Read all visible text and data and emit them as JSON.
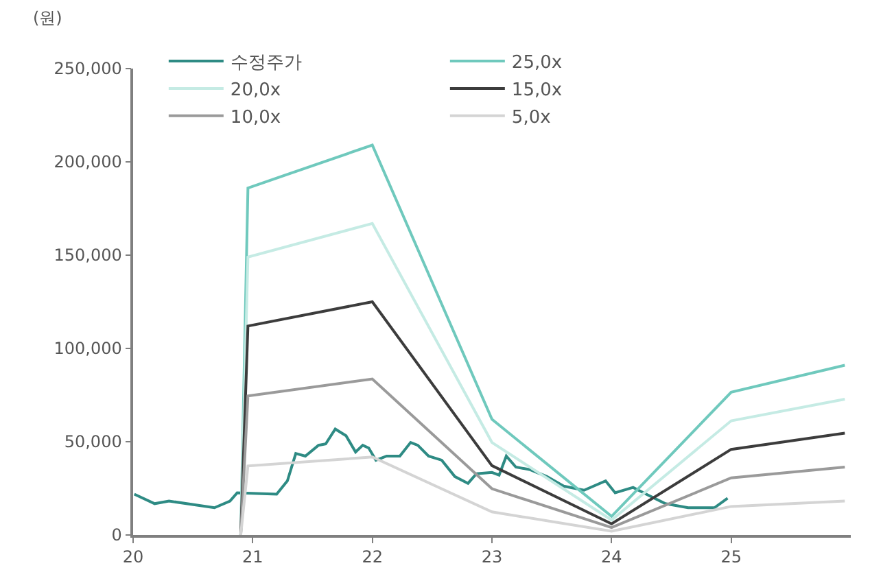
{
  "chart_data": {
    "type": "line",
    "ylabel": "(원)",
    "xlim": [
      20,
      26
    ],
    "xticks": [
      20,
      21,
      22,
      23,
      24,
      25
    ],
    "ylim": [
      0,
      250000
    ],
    "yticks": [
      {
        "value": 0,
        "label": "0"
      },
      {
        "value": 50000,
        "label": "50,000"
      },
      {
        "value": 100000,
        "label": "100,000"
      },
      {
        "value": 150000,
        "label": "150,000"
      },
      {
        "value": 200000,
        "label": "200,000"
      },
      {
        "value": 250000,
        "label": "250,000"
      }
    ],
    "grid": false,
    "legend": "top",
    "marker": "none",
    "line_style": "solid",
    "series": [
      {
        "name": "수정주가",
        "color": "#2e8b84",
        "x": [
          20.01,
          20.18,
          20.3,
          20.68,
          20.81,
          20.87,
          21.2,
          21.29,
          21.36,
          21.44,
          21.55,
          21.61,
          21.69,
          21.78,
          21.86,
          21.92,
          21.97,
          22.03,
          22.12,
          22.23,
          22.32,
          22.38,
          22.47,
          22.58,
          22.69,
          22.8,
          22.87,
          23.0,
          23.06,
          23.12,
          23.2,
          23.32,
          23.46,
          23.6,
          23.77,
          23.95,
          24.03,
          24.18,
          24.29,
          24.45,
          24.64,
          24.86,
          24.97
        ],
        "values": [
          21900,
          16800,
          18200,
          14600,
          18200,
          22600,
          21900,
          29000,
          43700,
          42300,
          48100,
          48800,
          56800,
          53200,
          44500,
          48100,
          46600,
          40100,
          42300,
          42300,
          49600,
          48100,
          42300,
          40100,
          31300,
          27700,
          32800,
          33500,
          32100,
          42300,
          36400,
          35000,
          31300,
          26200,
          24000,
          29000,
          22600,
          25500,
          21900,
          16800,
          14600,
          14600,
          19700
        ]
      },
      {
        "name": "25,0x",
        "color": "#6fc9bd",
        "x": [
          20.9,
          20.96,
          22.0,
          23.0,
          24.0,
          25.0,
          25.95
        ],
        "values": [
          0,
          186000,
          209000,
          62000,
          10000,
          76500,
          91000
        ]
      },
      {
        "name": "20,0x",
        "color": "#c5ebe4",
        "x": [
          20.9,
          20.96,
          22.0,
          23.0,
          24.0,
          25.0,
          25.95
        ],
        "values": [
          0,
          149000,
          167000,
          49600,
          8000,
          61200,
          72800
        ]
      },
      {
        "name": "15,0x",
        "color": "#3c3c3c",
        "x": [
          20.9,
          20.96,
          22.0,
          23.0,
          24.0,
          25.0,
          25.95
        ],
        "values": [
          0,
          112000,
          125000,
          37200,
          6000,
          45900,
          54600
        ]
      },
      {
        "name": "10,0x",
        "color": "#9a9a9a",
        "x": [
          20.9,
          20.96,
          22.0,
          23.0,
          24.0,
          25.0,
          25.95
        ],
        "values": [
          0,
          74500,
          83600,
          24800,
          4000,
          30600,
          36400
        ]
      },
      {
        "name": "5,0x",
        "color": "#d4d4d4",
        "x": [
          20.9,
          20.96,
          22.0,
          23.0,
          24.0,
          25.0,
          25.95
        ],
        "values": [
          0,
          37000,
          41800,
          12400,
          2000,
          15300,
          18200
        ]
      }
    ]
  }
}
